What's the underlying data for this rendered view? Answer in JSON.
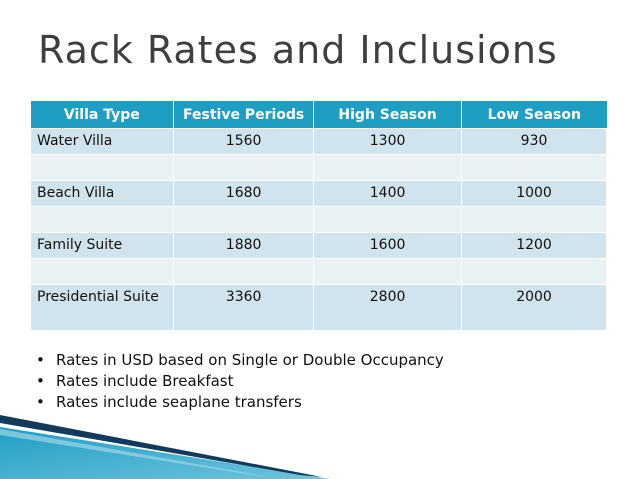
{
  "slide": {
    "title": "Rack Rates and Inclusions"
  },
  "table": {
    "headers": [
      "Villa Type",
      "Festive Periods",
      "High Season",
      "Low Season"
    ],
    "rows": [
      {
        "villa": "Water Villa",
        "festive": "1560",
        "high": "1300",
        "low": "930"
      },
      {
        "villa": "",
        "festive": "",
        "high": "",
        "low": ""
      },
      {
        "villa": "Beach Villa",
        "festive": "1680",
        "high": "1400",
        "low": "1000"
      },
      {
        "villa": "",
        "festive": "",
        "high": "",
        "low": ""
      },
      {
        "villa": "Family Suite",
        "festive": "1880",
        "high": "1600",
        "low": "1200"
      },
      {
        "villa": "",
        "festive": "",
        "high": "",
        "low": ""
      },
      {
        "villa": "Presidential Suite",
        "festive": "3360",
        "high": "2800",
        "low": "2000"
      }
    ]
  },
  "notes": [
    "Rates in USD based on Single or Double Occupancy",
    "Rates include Breakfast",
    "Rates include seaplane transfers"
  ],
  "colors": {
    "header_bg": "#1f9ec4",
    "row_dark": "#d1e3ec",
    "row_light": "#e9f1f5",
    "accent_dark": "#123a5c",
    "accent_teal": "#1f9ec4"
  }
}
